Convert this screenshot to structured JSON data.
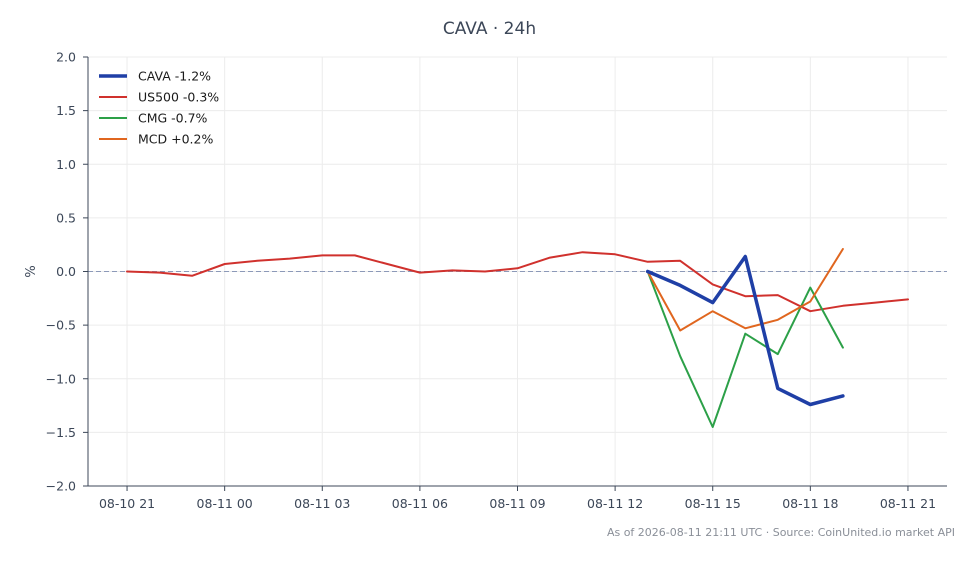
{
  "chart_data": {
    "type": "line",
    "title": "CAVA · 24h",
    "xlabel": "",
    "ylabel": "%",
    "ylim": [
      -2.0,
      2.0
    ],
    "yticks": [
      "2.0",
      "1.5",
      "1.0",
      "0.5",
      "0.0",
      "−0.5",
      "−1.0",
      "−1.5",
      "−2.0"
    ],
    "ytick_values": [
      2.0,
      1.5,
      1.0,
      0.5,
      0.0,
      -0.5,
      -1.0,
      -1.5,
      -2.0
    ],
    "xticks": [
      "08-10 21",
      "08-11 00",
      "08-11 03",
      "08-11 06",
      "08-11 09",
      "08-11 12",
      "08-11 15",
      "08-11 18",
      "08-11 21"
    ],
    "xtick_values": [
      0,
      3,
      6,
      9,
      12,
      15,
      18,
      21,
      24
    ],
    "x_unit": "hours from 08-10 21:00",
    "xlim": [
      -1.2,
      25.2
    ],
    "grid": true,
    "zero_line": true,
    "legend_position": "top-left",
    "series": [
      {
        "name": "CAVA -1.2%",
        "color": "#1f3fa6",
        "width": 3.5,
        "x": [
          16,
          17,
          18,
          19,
          20,
          21,
          22
        ],
        "values": [
          0.0,
          -0.13,
          -0.29,
          0.14,
          -1.09,
          -1.24,
          -1.16
        ]
      },
      {
        "name": "US500 -0.3%",
        "color": "#d0312d",
        "width": 2,
        "x": [
          0,
          1,
          2,
          3,
          4,
          5,
          6,
          7,
          8,
          9,
          10,
          11,
          12,
          13,
          14,
          15,
          16,
          17,
          18,
          19,
          20,
          21,
          22,
          23,
          24
        ],
        "values": [
          0.0,
          -0.01,
          -0.04,
          0.07,
          0.1,
          0.12,
          0.15,
          0.15,
          0.07,
          -0.01,
          0.01,
          0.0,
          0.03,
          0.13,
          0.18,
          0.16,
          0.09,
          0.1,
          -0.12,
          -0.23,
          -0.22,
          -0.37,
          -0.32,
          -0.29,
          -0.26
        ]
      },
      {
        "name": "CMG -0.7%",
        "color": "#2ca048",
        "width": 2,
        "x": [
          16,
          17,
          18,
          19,
          20,
          21,
          22
        ],
        "values": [
          0.0,
          -0.79,
          -1.45,
          -0.58,
          -0.77,
          -0.15,
          -0.71
        ]
      },
      {
        "name": "MCD +0.2%",
        "color": "#e0661f",
        "width": 2,
        "x": [
          16,
          17,
          18,
          19,
          20,
          21,
          22
        ],
        "values": [
          0.0,
          -0.55,
          -0.37,
          -0.53,
          -0.45,
          -0.28,
          0.21
        ]
      }
    ]
  },
  "footer": {
    "note": "As of 2026-08-11 21:11 UTC · Source: CoinUnited.io market API"
  }
}
